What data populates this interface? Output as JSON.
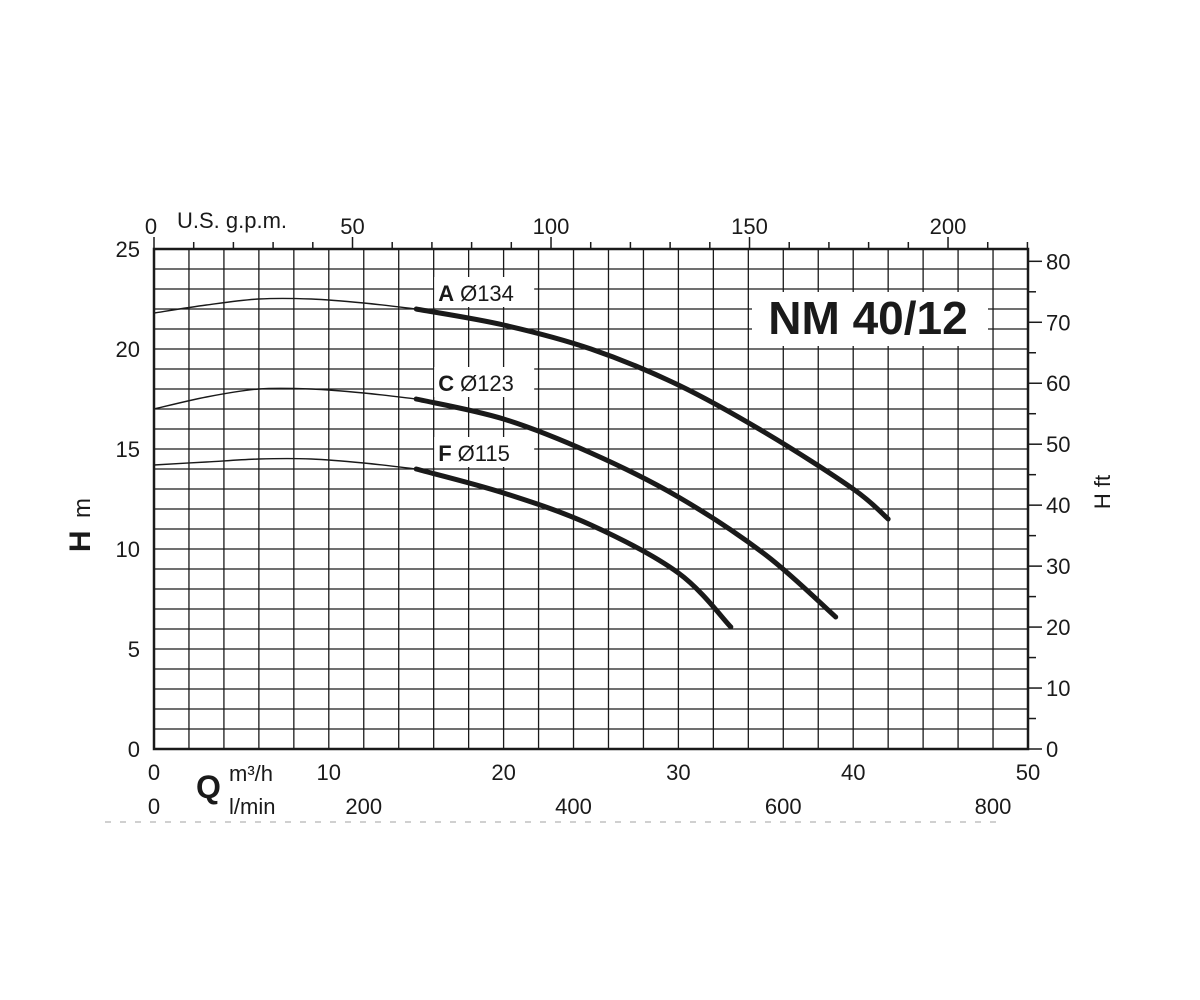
{
  "chart_data": {
    "type": "line",
    "title": "NM 40/12",
    "x_primary": {
      "unit": "m³/h",
      "label_letter": "Q",
      "range": [
        0,
        50
      ],
      "ticks": [
        0,
        10,
        20,
        30,
        40,
        50
      ]
    },
    "x_secondary": {
      "unit": "l/min",
      "ticks": [
        "0",
        "200",
        "400",
        "600",
        "800"
      ]
    },
    "x_top": {
      "unit": "U.S. g.p.m.",
      "ticks": [
        "0",
        "50",
        "100",
        "150",
        "200"
      ]
    },
    "y_left": {
      "label_letter": "H",
      "unit": "m",
      "range": [
        0,
        25
      ],
      "ticks": [
        0,
        5,
        10,
        15,
        20,
        25
      ]
    },
    "y_right": {
      "unit": "H ft",
      "ticks": [
        0,
        10,
        20,
        30,
        40,
        50,
        60,
        70,
        80
      ]
    },
    "grid": true,
    "series": [
      {
        "name": "A",
        "diameter_label": "Ø134",
        "thin_points": [
          [
            0,
            21.8
          ],
          [
            3,
            22.2
          ],
          [
            6,
            22.5
          ],
          [
            9,
            22.5
          ],
          [
            12,
            22.3
          ],
          [
            15,
            22.0
          ]
        ],
        "bold_points": [
          [
            15,
            22.0
          ],
          [
            20,
            21.2
          ],
          [
            25,
            20.0
          ],
          [
            30,
            18.2
          ],
          [
            35,
            15.8
          ],
          [
            40,
            13.0
          ],
          [
            42,
            11.5
          ]
        ]
      },
      {
        "name": "C",
        "diameter_label": "Ø123",
        "thin_points": [
          [
            0,
            17.0
          ],
          [
            3,
            17.6
          ],
          [
            6,
            18.0
          ],
          [
            9,
            18.0
          ],
          [
            12,
            17.8
          ],
          [
            15,
            17.5
          ]
        ],
        "bold_points": [
          [
            15,
            17.5
          ],
          [
            20,
            16.5
          ],
          [
            25,
            14.8
          ],
          [
            30,
            12.6
          ],
          [
            35,
            9.7
          ],
          [
            39,
            6.6
          ]
        ]
      },
      {
        "name": "F",
        "diameter_label": "Ø115",
        "thin_points": [
          [
            0,
            14.2
          ],
          [
            3,
            14.35
          ],
          [
            6,
            14.5
          ],
          [
            9,
            14.5
          ],
          [
            12,
            14.3
          ],
          [
            15,
            14.0
          ]
        ],
        "bold_points": [
          [
            15,
            14.0
          ],
          [
            20,
            12.8
          ],
          [
            25,
            11.2
          ],
          [
            30,
            8.8
          ],
          [
            33,
            6.1
          ]
        ]
      }
    ]
  }
}
